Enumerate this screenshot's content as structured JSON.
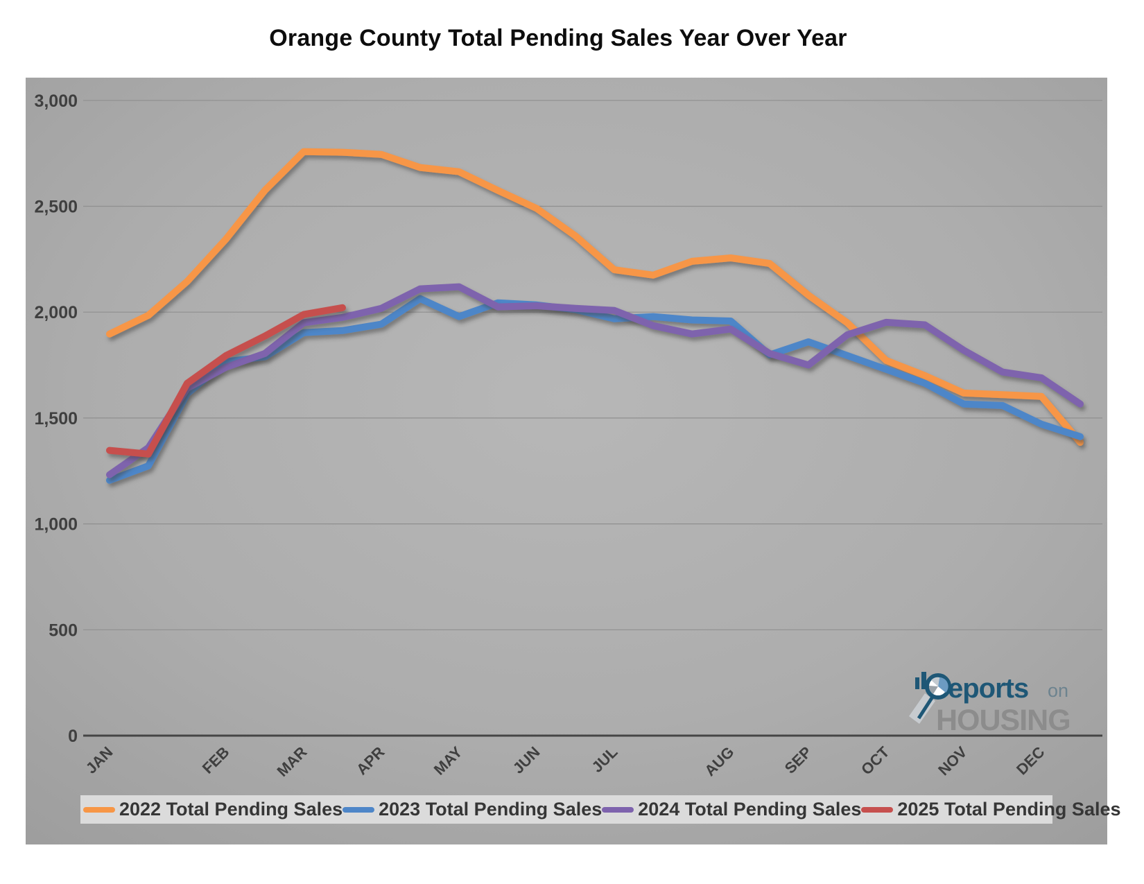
{
  "title": "Orange County Total Pending Sales Year Over Year",
  "chart_data": {
    "type": "line",
    "x_unit": "semi-monthly points (26 per year, Jan through late Dec)",
    "month_labels": [
      "JAN",
      "FEB",
      "MAR",
      "APR",
      "MAY",
      "JUN",
      "JUL",
      "AUG",
      "SEP",
      "OCT",
      "NOV",
      "DEC"
    ],
    "month_tick_point_indices": [
      0,
      3,
      5,
      7,
      9,
      11,
      13,
      16,
      18,
      20,
      22,
      24
    ],
    "y_tick_labels": [
      "0",
      "500",
      "1,000",
      "1,500",
      "2,000",
      "2,500",
      "3,000"
    ],
    "y_tick_step": 500,
    "ylim": [
      0,
      3000
    ],
    "grid": "horizontal gridlines only",
    "legend_position": "bottom strip",
    "plot_background": "gray gradient",
    "series": [
      {
        "name": "2022 Total Pending Sales",
        "color": "#F79646",
        "values": [
          1897,
          1985,
          2145,
          2345,
          2575,
          2758,
          2755,
          2745,
          2683,
          2663,
          2575,
          2490,
          2360,
          2200,
          2175,
          2240,
          2256,
          2230,
          2080,
          1950,
          1772,
          1700,
          1618,
          1610,
          1602,
          1385
        ]
      },
      {
        "name": "2023 Total Pending Sales",
        "color": "#4E86C8",
        "values": [
          1206,
          1274,
          1615,
          1766,
          1789,
          1903,
          1913,
          1943,
          2064,
          1979,
          2044,
          2034,
          2012,
          1969,
          1979,
          1963,
          1958,
          1798,
          1860,
          1795,
          1730,
          1664,
          1566,
          1559,
          1471,
          1412
        ]
      },
      {
        "name": "2024 Total Pending Sales",
        "color": "#7E63AD",
        "values": [
          1232,
          1360,
          1641,
          1740,
          1805,
          1950,
          1975,
          2018,
          2110,
          2120,
          2025,
          2030,
          2018,
          2008,
          1936,
          1897,
          1920,
          1805,
          1750,
          1893,
          1952,
          1940,
          1820,
          1717,
          1690,
          1566
        ]
      },
      {
        "name": "2025 Total Pending Sales",
        "color": "#C6504E",
        "values": [
          1347,
          1330,
          1664,
          1795,
          1887,
          1989,
          2021
        ]
      }
    ]
  },
  "logo": {
    "text_reports": "eports",
    "text_on": "on",
    "text_housing": "HOUSING",
    "teal_color": "#1E5776",
    "gray_color": "#8C8C8C"
  }
}
